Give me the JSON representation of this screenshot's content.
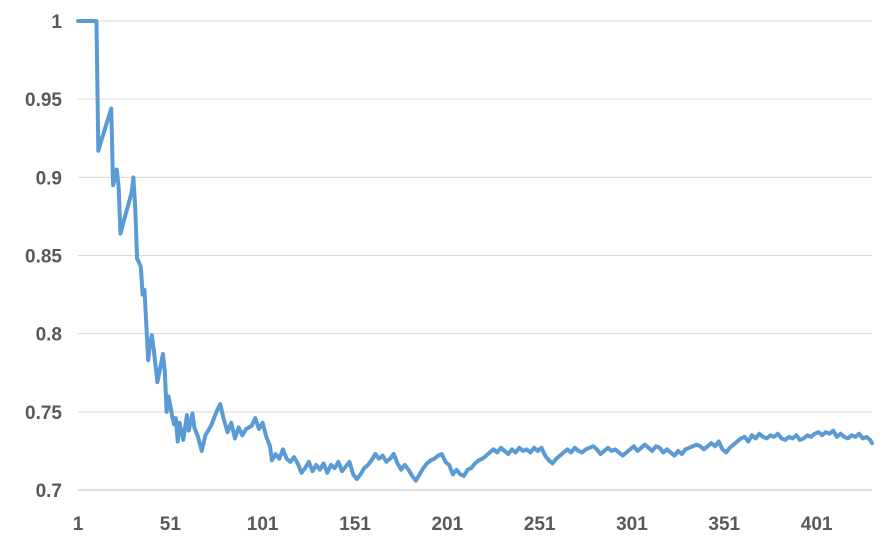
{
  "chart_data": {
    "type": "line",
    "title": "",
    "xlabel": "",
    "ylabel": "",
    "ylim": [
      0.7,
      1
    ],
    "xlim": [
      1,
      431
    ],
    "grid": "horizontal",
    "legend": "none",
    "y_ticks": [
      {
        "value": 1,
        "label": "1"
      },
      {
        "value": 0.95,
        "label": "0.95"
      },
      {
        "value": 0.9,
        "label": "0.9"
      },
      {
        "value": 0.85,
        "label": "0.85"
      },
      {
        "value": 0.8,
        "label": "0.8"
      },
      {
        "value": 0.75,
        "label": "0.75"
      },
      {
        "value": 0.7,
        "label": "0.7"
      }
    ],
    "x_ticks": [
      {
        "value": 1,
        "label": "1"
      },
      {
        "value": 51,
        "label": "51"
      },
      {
        "value": 101,
        "label": "101"
      },
      {
        "value": 151,
        "label": "151"
      },
      {
        "value": 201,
        "label": "201"
      },
      {
        "value": 251,
        "label": "251"
      },
      {
        "value": 301,
        "label": "301"
      },
      {
        "value": 351,
        "label": "351"
      },
      {
        "value": 401,
        "label": "401"
      }
    ],
    "series": [
      {
        "color": "#5b9bd5",
        "points": [
          [
            1,
            1.0
          ],
          [
            11,
            1.0
          ],
          [
            12,
            0.917
          ],
          [
            14,
            0.925
          ],
          [
            19,
            0.944
          ],
          [
            20,
            0.895
          ],
          [
            22,
            0.905
          ],
          [
            23,
            0.894
          ],
          [
            24,
            0.864
          ],
          [
            26,
            0.873
          ],
          [
            30,
            0.89
          ],
          [
            31,
            0.9
          ],
          [
            32,
            0.88
          ],
          [
            33,
            0.848
          ],
          [
            35,
            0.843
          ],
          [
            36,
            0.825
          ],
          [
            37,
            0.828
          ],
          [
            39,
            0.783
          ],
          [
            40,
            0.793
          ],
          [
            41,
            0.799
          ],
          [
            42,
            0.79
          ],
          [
            44,
            0.769
          ],
          [
            45,
            0.775
          ],
          [
            47,
            0.787
          ],
          [
            48,
            0.776
          ],
          [
            49,
            0.75
          ],
          [
            50,
            0.76
          ],
          [
            51,
            0.754
          ],
          [
            52,
            0.747
          ],
          [
            53,
            0.742
          ],
          [
            54,
            0.746
          ],
          [
            55,
            0.731
          ],
          [
            56,
            0.743
          ],
          [
            58,
            0.732
          ],
          [
            60,
            0.748
          ],
          [
            61,
            0.738
          ],
          [
            63,
            0.749
          ],
          [
            64,
            0.74
          ],
          [
            66,
            0.734
          ],
          [
            68,
            0.725
          ],
          [
            70,
            0.735
          ],
          [
            73,
            0.741
          ],
          [
            76,
            0.75
          ],
          [
            78,
            0.755
          ],
          [
            80,
            0.745
          ],
          [
            82,
            0.737
          ],
          [
            84,
            0.743
          ],
          [
            86,
            0.733
          ],
          [
            88,
            0.74
          ],
          [
            90,
            0.735
          ],
          [
            92,
            0.739
          ],
          [
            95,
            0.741
          ],
          [
            97,
            0.746
          ],
          [
            99,
            0.739
          ],
          [
            101,
            0.743
          ],
          [
            103,
            0.734
          ],
          [
            105,
            0.728
          ],
          [
            106,
            0.719
          ],
          [
            108,
            0.723
          ],
          [
            110,
            0.72
          ],
          [
            112,
            0.726
          ],
          [
            114,
            0.72
          ],
          [
            116,
            0.718
          ],
          [
            118,
            0.721
          ],
          [
            120,
            0.717
          ],
          [
            122,
            0.711
          ],
          [
            124,
            0.714
          ],
          [
            126,
            0.718
          ],
          [
            128,
            0.712
          ],
          [
            130,
            0.716
          ],
          [
            132,
            0.713
          ],
          [
            134,
            0.717
          ],
          [
            136,
            0.711
          ],
          [
            138,
            0.716
          ],
          [
            140,
            0.714
          ],
          [
            142,
            0.718
          ],
          [
            144,
            0.712
          ],
          [
            146,
            0.715
          ],
          [
            148,
            0.718
          ],
          [
            150,
            0.71
          ],
          [
            152,
            0.707
          ],
          [
            154,
            0.71
          ],
          [
            156,
            0.714
          ],
          [
            158,
            0.716
          ],
          [
            160,
            0.719
          ],
          [
            162,
            0.723
          ],
          [
            164,
            0.72
          ],
          [
            166,
            0.722
          ],
          [
            168,
            0.718
          ],
          [
            170,
            0.72
          ],
          [
            172,
            0.723
          ],
          [
            174,
            0.717
          ],
          [
            176,
            0.713
          ],
          [
            178,
            0.716
          ],
          [
            180,
            0.713
          ],
          [
            182,
            0.709
          ],
          [
            184,
            0.706
          ],
          [
            186,
            0.71
          ],
          [
            188,
            0.714
          ],
          [
            190,
            0.717
          ],
          [
            192,
            0.719
          ],
          [
            194,
            0.72
          ],
          [
            196,
            0.722
          ],
          [
            198,
            0.723
          ],
          [
            200,
            0.718
          ],
          [
            202,
            0.716
          ],
          [
            204,
            0.71
          ],
          [
            206,
            0.713
          ],
          [
            208,
            0.71
          ],
          [
            210,
            0.709
          ],
          [
            212,
            0.713
          ],
          [
            214,
            0.714
          ],
          [
            216,
            0.717
          ],
          [
            218,
            0.719
          ],
          [
            220,
            0.72
          ],
          [
            222,
            0.722
          ],
          [
            224,
            0.724
          ],
          [
            226,
            0.726
          ],
          [
            228,
            0.724
          ],
          [
            230,
            0.727
          ],
          [
            232,
            0.725
          ],
          [
            234,
            0.723
          ],
          [
            236,
            0.726
          ],
          [
            238,
            0.724
          ],
          [
            240,
            0.727
          ],
          [
            242,
            0.725
          ],
          [
            244,
            0.726
          ],
          [
            246,
            0.724
          ],
          [
            248,
            0.727
          ],
          [
            250,
            0.725
          ],
          [
            252,
            0.727
          ],
          [
            254,
            0.722
          ],
          [
            256,
            0.719
          ],
          [
            258,
            0.717
          ],
          [
            260,
            0.72
          ],
          [
            262,
            0.722
          ],
          [
            264,
            0.724
          ],
          [
            266,
            0.726
          ],
          [
            268,
            0.724
          ],
          [
            270,
            0.727
          ],
          [
            272,
            0.725
          ],
          [
            274,
            0.724
          ],
          [
            276,
            0.726
          ],
          [
            278,
            0.727
          ],
          [
            280,
            0.728
          ],
          [
            282,
            0.726
          ],
          [
            284,
            0.723
          ],
          [
            286,
            0.725
          ],
          [
            288,
            0.727
          ],
          [
            290,
            0.725
          ],
          [
            292,
            0.726
          ],
          [
            294,
            0.724
          ],
          [
            296,
            0.722
          ],
          [
            298,
            0.724
          ],
          [
            300,
            0.726
          ],
          [
            302,
            0.728
          ],
          [
            304,
            0.725
          ],
          [
            306,
            0.727
          ],
          [
            308,
            0.729
          ],
          [
            310,
            0.727
          ],
          [
            312,
            0.725
          ],
          [
            314,
            0.728
          ],
          [
            316,
            0.727
          ],
          [
            318,
            0.724
          ],
          [
            320,
            0.726
          ],
          [
            322,
            0.724
          ],
          [
            324,
            0.722
          ],
          [
            326,
            0.725
          ],
          [
            328,
            0.723
          ],
          [
            330,
            0.726
          ],
          [
            332,
            0.727
          ],
          [
            334,
            0.728
          ],
          [
            336,
            0.729
          ],
          [
            338,
            0.728
          ],
          [
            340,
            0.726
          ],
          [
            342,
            0.728
          ],
          [
            344,
            0.73
          ],
          [
            346,
            0.728
          ],
          [
            348,
            0.731
          ],
          [
            350,
            0.726
          ],
          [
            352,
            0.724
          ],
          [
            354,
            0.727
          ],
          [
            356,
            0.729
          ],
          [
            358,
            0.731
          ],
          [
            360,
            0.733
          ],
          [
            362,
            0.734
          ],
          [
            364,
            0.731
          ],
          [
            366,
            0.735
          ],
          [
            368,
            0.733
          ],
          [
            370,
            0.736
          ],
          [
            372,
            0.734
          ],
          [
            374,
            0.733
          ],
          [
            376,
            0.735
          ],
          [
            378,
            0.734
          ],
          [
            380,
            0.736
          ],
          [
            382,
            0.733
          ],
          [
            384,
            0.732
          ],
          [
            386,
            0.734
          ],
          [
            388,
            0.733
          ],
          [
            390,
            0.735
          ],
          [
            392,
            0.732
          ],
          [
            394,
            0.733
          ],
          [
            396,
            0.735
          ],
          [
            398,
            0.734
          ],
          [
            400,
            0.736
          ],
          [
            402,
            0.737
          ],
          [
            404,
            0.735
          ],
          [
            406,
            0.737
          ],
          [
            408,
            0.736
          ],
          [
            410,
            0.738
          ],
          [
            412,
            0.734
          ],
          [
            414,
            0.736
          ],
          [
            416,
            0.734
          ],
          [
            418,
            0.733
          ],
          [
            420,
            0.735
          ],
          [
            422,
            0.734
          ],
          [
            424,
            0.736
          ],
          [
            426,
            0.733
          ],
          [
            428,
            0.734
          ],
          [
            430,
            0.732
          ],
          [
            431,
            0.73
          ]
        ]
      }
    ]
  }
}
